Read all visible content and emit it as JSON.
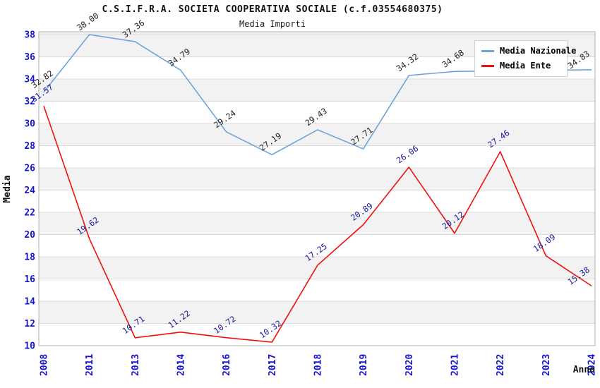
{
  "header": {
    "title": "C.S.I.F.R.A. SOCIETA COOPERATIVA SOCIALE (c.f.03554680375)",
    "subtitle": "Media Importi"
  },
  "chart_data": {
    "type": "line",
    "title": "C.S.I.F.R.A. SOCIETA COOPERATIVA SOCIALE (c.f.03554680375)",
    "subtitle": "Media Importi",
    "xlabel": "Anno",
    "ylabel": "Media",
    "ylim": [
      10,
      38
    ],
    "ytick_step": 2,
    "grid": true,
    "legend_position": "top-right",
    "band_colors": [
      "#ffffff",
      "#f2f2f2"
    ],
    "categories": [
      "2008",
      "2011",
      "2013",
      "2014",
      "2016",
      "2017",
      "2018",
      "2019",
      "2020",
      "2021",
      "2022",
      "2023",
      "2024"
    ],
    "series": [
      {
        "name": "Media Nazionale",
        "color": "#6fa3d9",
        "label_color": "#222222",
        "values": [
          32.82,
          38.0,
          37.36,
          34.79,
          29.24,
          27.19,
          29.43,
          27.71,
          34.32,
          34.68,
          34.74,
          34.79,
          34.83
        ],
        "labels": [
          "32.82",
          "38.00",
          "37.36",
          "34.79",
          "29.24",
          "27.19",
          "29.43",
          "27.71",
          "34.32",
          "34.68",
          null,
          null,
          "34.83"
        ]
      },
      {
        "name": "Media Ente",
        "color": "#ee1111",
        "label_color": "#1a1a99",
        "values": [
          31.57,
          19.62,
          10.71,
          11.22,
          10.72,
          10.32,
          17.25,
          20.89,
          26.06,
          20.12,
          27.46,
          18.09,
          15.38
        ],
        "labels": [
          "31.57",
          "19.62",
          "10.71",
          "11.22",
          "10.72",
          "10.32",
          "17.25",
          "20.89",
          "26.06",
          "20.12",
          "27.46",
          "18.09",
          "15.38"
        ]
      }
    ],
    "axis_tick_color": "#1414cc",
    "gridline_color": "#dcdcdc",
    "border_color": "#b0b0b0"
  }
}
